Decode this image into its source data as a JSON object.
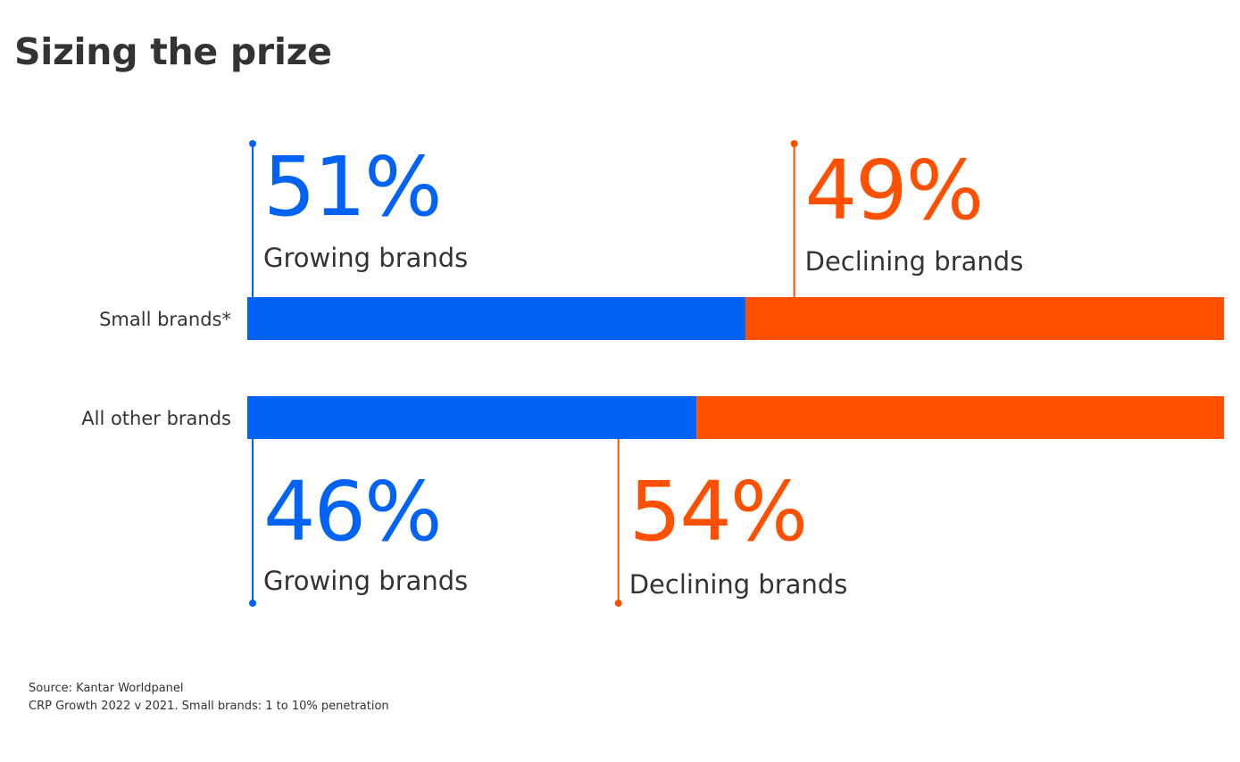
{
  "title": "Sizing the prize",
  "chart_data": {
    "type": "bar",
    "stacked": true,
    "orientation": "horizontal",
    "categories": [
      "Small brands*",
      "All other brands"
    ],
    "unit": "%",
    "xlim": [
      0,
      100
    ],
    "series": [
      {
        "name": "Growing brands",
        "values": [
          51,
          46
        ],
        "labels": [
          "51%",
          "46%"
        ],
        "color": "#0063F5"
      },
      {
        "name": "Declining brands",
        "values": [
          49,
          54
        ],
        "labels": [
          "49%",
          "54%"
        ],
        "color": "#FF5000"
      }
    ],
    "grid": false,
    "legend": "none"
  },
  "source": {
    "line1": "Source: Kantar Worldpanel",
    "line2": "CRP Growth 2022 v 2021. Small brands: 1 to 10% penetration"
  },
  "colors": {
    "text": "#333333",
    "growing": "#0063F5",
    "declining": "#FF5000"
  }
}
